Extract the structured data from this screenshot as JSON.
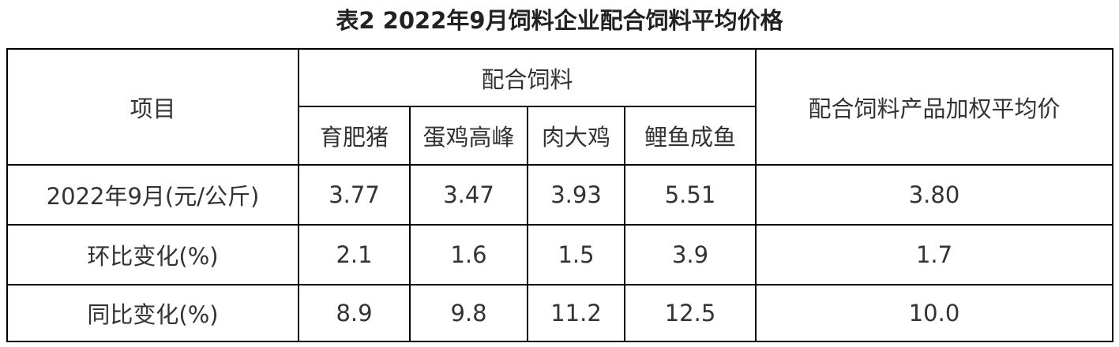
{
  "title": "表2 2022年9月饲料企业配合饲料平均价格",
  "header": {
    "item": "项目",
    "group": "配合饲料",
    "weighted": "配合饲料产品加权平均价",
    "subcols": [
      "育肥猪",
      "蛋鸡高峰",
      "肉大鸡",
      "鲤鱼成鱼"
    ]
  },
  "rows": [
    {
      "label": "2022年9月(元/公斤)",
      "values": [
        "3.77",
        "3.47",
        "3.93",
        "5.51",
        "3.80"
      ]
    },
    {
      "label": "环比变化(%)",
      "values": [
        "2.1",
        "1.6",
        "1.5",
        "3.9",
        "1.7"
      ]
    },
    {
      "label": "同比变化(%)",
      "values": [
        "8.9",
        "9.8",
        "11.2",
        "12.5",
        "10.0"
      ]
    }
  ]
}
